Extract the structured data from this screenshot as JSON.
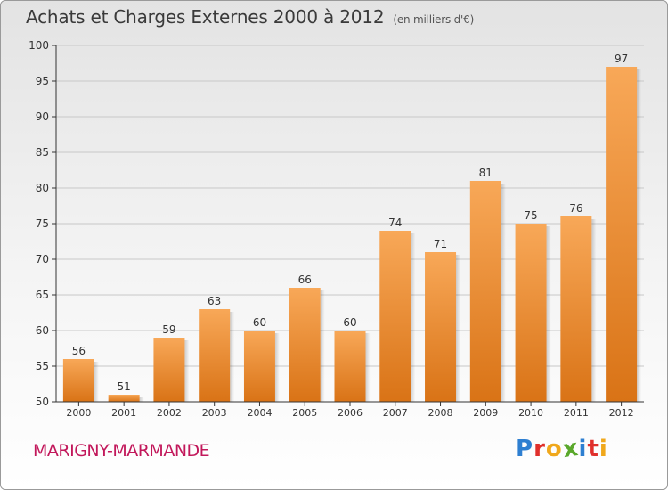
{
  "title": "Achats et Charges Externes 2000 à 2012",
  "subtitle": "(en milliers d'€)",
  "commune": "MARIGNY-MARMANDE",
  "logo": {
    "letters": [
      "P",
      "r",
      "o",
      "x",
      "i",
      "t",
      "i"
    ],
    "colors": [
      "#2e7fd1",
      "#e0302c",
      "#f0a81c",
      "#5aa82b",
      "#2e7fd1",
      "#e0302c",
      "#f0a81c"
    ]
  },
  "colors": {
    "bar_top": "#f8a858",
    "bar_bottom": "#d97316",
    "axis": "#333333",
    "grid": "#c8c8c8"
  },
  "chart_data": {
    "type": "bar",
    "categories": [
      "2000",
      "2001",
      "2002",
      "2003",
      "2004",
      "2005",
      "2006",
      "2007",
      "2008",
      "2009",
      "2010",
      "2011",
      "2012"
    ],
    "values": [
      56,
      51,
      59,
      63,
      60,
      66,
      60,
      74,
      71,
      81,
      75,
      76,
      97
    ],
    "ylim": [
      50,
      100
    ],
    "yticks": [
      50,
      55,
      60,
      65,
      70,
      75,
      80,
      85,
      90,
      95,
      100
    ],
    "grid": true
  }
}
